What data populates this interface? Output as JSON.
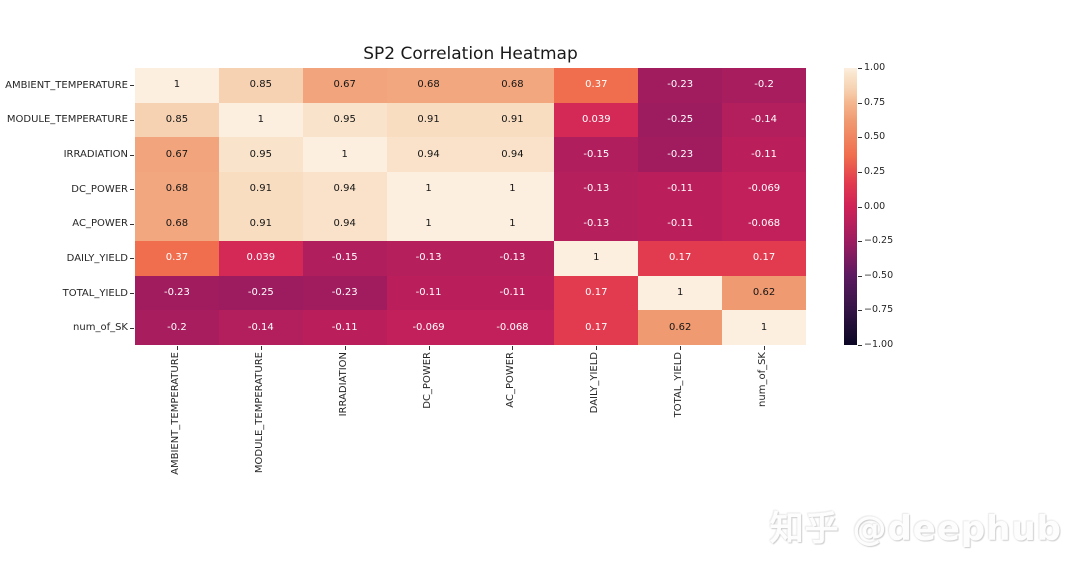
{
  "title": "SP2 Correlation Heatmap",
  "watermark": "知乎 @deephub",
  "chart_data": {
    "type": "heatmap",
    "title": "SP2 Correlation Heatmap",
    "categories": [
      "AMBIENT_TEMPERATURE",
      "MODULE_TEMPERATURE",
      "IRRADIATION",
      "DC_POWER",
      "AC_POWER",
      "DAILY_YIELD",
      "TOTAL_YIELD",
      "num_of_SK"
    ],
    "matrix": [
      [
        1,
        0.85,
        0.67,
        0.68,
        0.68,
        0.37,
        -0.23,
        -0.2
      ],
      [
        0.85,
        1,
        0.95,
        0.91,
        0.91,
        0.039,
        -0.25,
        -0.14
      ],
      [
        0.67,
        0.95,
        1,
        0.94,
        0.94,
        -0.15,
        -0.23,
        -0.11
      ],
      [
        0.68,
        0.91,
        0.94,
        1,
        1,
        -0.13,
        -0.11,
        -0.069
      ],
      [
        0.68,
        0.91,
        0.94,
        1,
        1,
        -0.13,
        -0.11,
        -0.068
      ],
      [
        0.37,
        0.039,
        -0.15,
        -0.13,
        -0.13,
        1,
        0.17,
        0.17
      ],
      [
        -0.23,
        -0.25,
        -0.23,
        -0.11,
        -0.11,
        0.17,
        1,
        0.62
      ],
      [
        -0.2,
        -0.14,
        -0.11,
        -0.069,
        -0.068,
        0.17,
        0.62,
        1
      ]
    ],
    "cell_labels": [
      [
        "1",
        "0.85",
        "0.67",
        "0.68",
        "0.68",
        "0.37",
        "-0.23",
        "-0.2"
      ],
      [
        "0.85",
        "1",
        "0.95",
        "0.91",
        "0.91",
        "0.039",
        "-0.25",
        "-0.14"
      ],
      [
        "0.67",
        "0.95",
        "1",
        "0.94",
        "0.94",
        "-0.15",
        "-0.23",
        "-0.11"
      ],
      [
        "0.68",
        "0.91",
        "0.94",
        "1",
        "1",
        "-0.13",
        "-0.11",
        "-0.069"
      ],
      [
        "0.68",
        "0.91",
        "0.94",
        "1",
        "1",
        "-0.13",
        "-0.11",
        "-0.068"
      ],
      [
        "0.37",
        "0.039",
        "-0.15",
        "-0.13",
        "-0.13",
        "1",
        "0.17",
        "0.17"
      ],
      [
        "-0.23",
        "-0.25",
        "-0.23",
        "-0.11",
        "-0.11",
        "0.17",
        "1",
        "0.62"
      ],
      [
        "-0.2",
        "-0.14",
        "-0.11",
        "-0.069",
        "-0.068",
        "0.17",
        "0.62",
        "1"
      ]
    ],
    "vmin": -1,
    "vmax": 1,
    "grid": false,
    "legend_position": "right",
    "colormap_name": "rocket",
    "colorbar_ticks": [
      {
        "value": 1.0,
        "label": "1.00"
      },
      {
        "value": 0.75,
        "label": "0.75"
      },
      {
        "value": 0.5,
        "label": "0.50"
      },
      {
        "value": 0.25,
        "label": "0.25"
      },
      {
        "value": 0.0,
        "label": "0.00"
      },
      {
        "value": -0.25,
        "label": "−0.25"
      },
      {
        "value": -0.5,
        "label": "−0.50"
      },
      {
        "value": -0.75,
        "label": "−0.75"
      },
      {
        "value": -1.0,
        "label": "−1.00"
      }
    ],
    "colormap_stops": [
      {
        "value": -1.0,
        "color": "#0b0724"
      },
      {
        "value": -0.75,
        "color": "#331445"
      },
      {
        "value": -0.5,
        "color": "#5c1a60"
      },
      {
        "value": -0.25,
        "color": "#9d1c60"
      },
      {
        "value": 0.0,
        "color": "#d02258"
      },
      {
        "value": 0.17,
        "color": "#e23a4f"
      },
      {
        "value": 0.37,
        "color": "#f06e4e"
      },
      {
        "value": 0.62,
        "color": "#f09a71"
      },
      {
        "value": 0.75,
        "color": "#f5b78f"
      },
      {
        "value": 0.85,
        "color": "#f6d2b3"
      },
      {
        "value": 0.95,
        "color": "#f9e4cb"
      },
      {
        "value": 1.0,
        "color": "#fcefe0"
      }
    ],
    "annotation_text_colors": {
      "light": "#ffffff",
      "dark": "#161616"
    },
    "annotation_dark_threshold": 0.5
  }
}
